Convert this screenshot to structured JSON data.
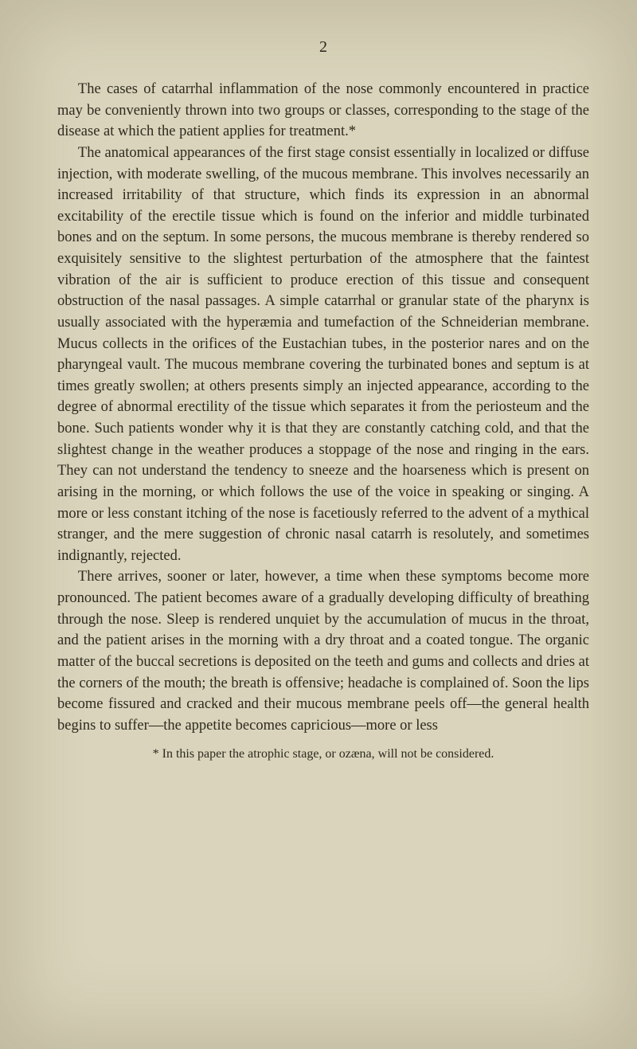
{
  "page": {
    "number": "2",
    "background_color": "#d9d4bb",
    "text_color": "#2e2a1f",
    "font_family": "Georgia, 'Times New Roman', serif",
    "body_fontsize": 18.5,
    "line_height": 1.44,
    "paragraphs": [
      "The cases of catarrhal inflammation of the nose commonly encountered in practice may be conveniently thrown into two groups or classes, corresponding to the stage of the disease at which the patient applies for treatment.*",
      "The anatomical appearances of the first stage consist essentially in localized or diffuse injection, with moderate swelling, of the mucous membrane. This involves necessarily an increased irritability of that structure, which finds its expression in an abnormal excitability of the erectile tissue which is found on the inferior and middle turbinated bones and on the septum. In some persons, the mucous membrane is thereby rendered so exquisitely sensitive to the slightest perturbation of the atmosphere that the faintest vibration of the air is sufficient to produce erection of this tissue and consequent obstruction of the nasal passages. A simple catarrhal or granular state of the pharynx is usually associated with the hyperæmia and tumefaction of the Schneiderian membrane. Mucus collects in the orifices of the Eustachian tubes, in the posterior nares and on the pharyngeal vault. The mucous membrane covering the turbinated bones and septum is at times greatly swollen; at others presents simply an injected appearance, according to the degree of abnormal erectility of the tissue which separates it from the periosteum and the bone. Such patients wonder why it is that they are constantly catching cold, and that the slightest change in the weather produces a stoppage of the nose and ringing in the ears. They can not understand the tendency to sneeze and the hoarseness which is present on arising in the morning, or which follows the use of the voice in speaking or singing. A more or less constant itching of the nose is facetiously referred to the advent of a mythical stranger, and the mere suggestion of chronic nasal catarrh is resolutely, and sometimes indignantly, rejected.",
      "There arrives, sooner or later, however, a time when these symptoms become more pronounced. The patient becomes aware of a gradually developing difficulty of breathing through the nose. Sleep is rendered unquiet by the accumulation of mucus in the throat, and the patient arises in the morning with a dry throat and a coated tongue. The organic matter of the buccal secretions is deposited on the teeth and gums and collects and dries at the corners of the mouth; the breath is offensive; headache is complained of. Soon the lips become fissured and cracked and their mucous membrane peels off—the general health begins to suffer—the appetite becomes capricious—more or less"
    ],
    "footnote": "* In this paper the atrophic stage, or ozæna, will not be considered."
  }
}
